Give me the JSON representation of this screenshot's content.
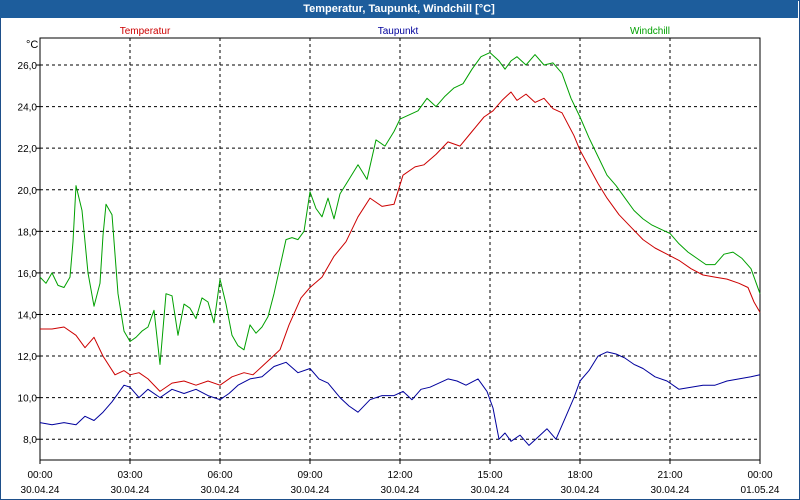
{
  "window": {
    "title": "Temperatur, Taupunkt, Windchill [°C]"
  },
  "chart_data": {
    "type": "line",
    "title": "Temperatur, Taupunkt, Windchill [°C]",
    "ylabel": "°C",
    "xlabel": "",
    "ylim": [
      7.0,
      27.3
    ],
    "xlim": [
      0,
      24
    ],
    "grid": true,
    "legend_position": "top",
    "y_ticks": [
      "8,0",
      "10,0",
      "12,0",
      "14,0",
      "16,0",
      "18,0",
      "20,0",
      "22,0",
      "24,0",
      "26,0"
    ],
    "y_tick_values": [
      8,
      10,
      12,
      14,
      16,
      18,
      20,
      22,
      24,
      26
    ],
    "x_ticks": [
      {
        "time": "00:00",
        "date": "30.04.24"
      },
      {
        "time": "03:00",
        "date": "30.04.24"
      },
      {
        "time": "06:00",
        "date": "30.04.24"
      },
      {
        "time": "09:00",
        "date": "30.04.24"
      },
      {
        "time": "12:00",
        "date": "30.04.24"
      },
      {
        "time": "15:00",
        "date": "30.04.24"
      },
      {
        "time": "18:00",
        "date": "30.04.24"
      },
      {
        "time": "21:00",
        "date": "30.04.24"
      },
      {
        "time": "00:00",
        "date": "01.05.24"
      }
    ],
    "x_tick_values": [
      0,
      3,
      6,
      9,
      12,
      15,
      18,
      21,
      24
    ],
    "series": [
      {
        "name": "Temperatur",
        "color": "#cc0000",
        "x": [
          0,
          0.4,
          0.8,
          1.2,
          1.5,
          1.8,
          2.1,
          2.5,
          2.8,
          3.0,
          3.3,
          3.6,
          4.0,
          4.4,
          4.8,
          5.2,
          5.6,
          6.0,
          6.4,
          6.8,
          7.1,
          7.4,
          7.7,
          8.0,
          8.3,
          8.7,
          9.0,
          9.4,
          9.8,
          10.2,
          10.6,
          11.0,
          11.4,
          11.8,
          12.1,
          12.5,
          12.8,
          13.2,
          13.6,
          14.0,
          14.4,
          14.8,
          15.1,
          15.4,
          15.7,
          15.9,
          16.2,
          16.5,
          16.8,
          17.1,
          17.4,
          17.8,
          18.0,
          18.3,
          18.6,
          18.9,
          19.3,
          19.7,
          20.1,
          20.5,
          20.9,
          21.3,
          21.7,
          22.1,
          22.5,
          22.9,
          23.3,
          23.6,
          23.8,
          24.0
        ],
        "values": [
          13.3,
          13.3,
          13.4,
          13.0,
          12.4,
          12.9,
          12.0,
          11.1,
          11.3,
          11.1,
          11.2,
          10.9,
          10.3,
          10.7,
          10.8,
          10.6,
          10.8,
          10.6,
          11.0,
          11.2,
          11.1,
          11.5,
          11.9,
          12.3,
          13.5,
          14.8,
          15.3,
          15.8,
          16.8,
          17.5,
          18.7,
          19.6,
          19.2,
          19.3,
          20.7,
          21.1,
          21.2,
          21.7,
          22.3,
          22.1,
          22.8,
          23.5,
          23.8,
          24.3,
          24.7,
          24.3,
          24.6,
          24.2,
          24.4,
          23.9,
          23.7,
          22.6,
          21.9,
          21.1,
          20.3,
          19.6,
          18.8,
          18.2,
          17.6,
          17.2,
          16.9,
          16.6,
          16.2,
          15.9,
          15.8,
          15.7,
          15.5,
          15.3,
          14.6,
          14.1
        ]
      },
      {
        "name": "Taupunkt",
        "color": "#00009c",
        "x": [
          0,
          0.4,
          0.8,
          1.2,
          1.5,
          1.8,
          2.1,
          2.4,
          2.8,
          3.0,
          3.3,
          3.6,
          4.0,
          4.4,
          4.8,
          5.2,
          5.6,
          6.0,
          6.3,
          6.6,
          7.0,
          7.4,
          7.8,
          8.2,
          8.6,
          9.0,
          9.3,
          9.6,
          10.0,
          10.3,
          10.6,
          11.0,
          11.4,
          11.8,
          12.1,
          12.4,
          12.7,
          13.0,
          13.3,
          13.6,
          13.9,
          14.2,
          14.6,
          14.9,
          15.1,
          15.3,
          15.5,
          15.7,
          16.0,
          16.3,
          16.6,
          16.9,
          17.2,
          17.5,
          17.8,
          18.0,
          18.3,
          18.6,
          18.9,
          19.2,
          19.5,
          19.8,
          20.1,
          20.5,
          20.9,
          21.3,
          21.7,
          22.1,
          22.5,
          22.9,
          23.3,
          23.7,
          24.0
        ],
        "values": [
          8.8,
          8.7,
          8.8,
          8.7,
          9.1,
          8.9,
          9.3,
          9.8,
          10.6,
          10.5,
          10.0,
          10.4,
          10.0,
          10.4,
          10.2,
          10.4,
          10.1,
          9.9,
          10.2,
          10.6,
          10.9,
          11.0,
          11.5,
          11.7,
          11.2,
          11.4,
          10.9,
          10.7,
          10.0,
          9.6,
          9.3,
          9.9,
          10.1,
          10.1,
          10.3,
          9.9,
          10.4,
          10.5,
          10.7,
          10.9,
          10.8,
          10.6,
          10.9,
          10.3,
          9.5,
          8.0,
          8.3,
          7.9,
          8.2,
          7.7,
          8.1,
          8.5,
          8.0,
          9.0,
          10.0,
          10.8,
          11.3,
          12.0,
          12.2,
          12.1,
          11.9,
          11.6,
          11.4,
          11.0,
          10.8,
          10.4,
          10.5,
          10.6,
          10.6,
          10.8,
          10.9,
          11.0,
          11.1
        ]
      },
      {
        "name": "Windchill",
        "color": "#00a000",
        "x": [
          0,
          0.2,
          0.4,
          0.6,
          0.8,
          1.0,
          1.1,
          1.2,
          1.4,
          1.6,
          1.8,
          2.0,
          2.1,
          2.2,
          2.4,
          2.6,
          2.8,
          3.0,
          3.2,
          3.4,
          3.6,
          3.8,
          4.0,
          4.2,
          4.4,
          4.6,
          4.8,
          5.0,
          5.2,
          5.4,
          5.6,
          5.8,
          6.0,
          6.2,
          6.4,
          6.6,
          6.8,
          7.0,
          7.2,
          7.4,
          7.6,
          7.8,
          8.0,
          8.2,
          8.4,
          8.6,
          8.8,
          9.0,
          9.2,
          9.4,
          9.6,
          9.8,
          10.0,
          10.3,
          10.6,
          10.9,
          11.2,
          11.5,
          11.8,
          12.0,
          12.3,
          12.6,
          12.9,
          13.2,
          13.5,
          13.8,
          14.1,
          14.4,
          14.7,
          15.0,
          15.3,
          15.5,
          15.7,
          15.9,
          16.2,
          16.5,
          16.8,
          17.1,
          17.4,
          17.7,
          18.0,
          18.3,
          18.6,
          18.9,
          19.2,
          19.5,
          19.8,
          20.1,
          20.4,
          20.7,
          21.0,
          21.3,
          21.6,
          21.9,
          22.2,
          22.5,
          22.8,
          23.1,
          23.4,
          23.7,
          24.0
        ],
        "values": [
          15.8,
          15.5,
          16.0,
          15.4,
          15.3,
          15.8,
          17.5,
          20.2,
          19.0,
          16.0,
          14.4,
          15.5,
          17.8,
          19.3,
          18.8,
          15.0,
          13.2,
          12.7,
          12.9,
          13.2,
          13.4,
          14.2,
          11.6,
          15.0,
          14.9,
          13.0,
          14.5,
          14.3,
          13.8,
          14.8,
          14.6,
          13.6,
          15.7,
          14.5,
          13.0,
          12.5,
          12.3,
          13.5,
          13.1,
          13.4,
          13.9,
          15.0,
          16.3,
          17.6,
          17.7,
          17.6,
          18.0,
          19.9,
          19.1,
          18.7,
          19.6,
          18.6,
          19.8,
          20.5,
          21.2,
          20.5,
          22.4,
          22.1,
          22.8,
          23.4,
          23.6,
          23.8,
          24.4,
          24.0,
          24.5,
          24.9,
          25.1,
          25.8,
          26.4,
          26.6,
          26.2,
          25.8,
          26.2,
          26.4,
          26.0,
          26.5,
          26.0,
          26.1,
          25.6,
          24.4,
          23.5,
          22.5,
          21.6,
          20.7,
          20.2,
          19.6,
          19.0,
          18.6,
          18.3,
          18.1,
          17.9,
          17.4,
          17.0,
          16.7,
          16.4,
          16.4,
          16.9,
          17.0,
          16.7,
          16.2,
          15.0
        ]
      }
    ]
  }
}
